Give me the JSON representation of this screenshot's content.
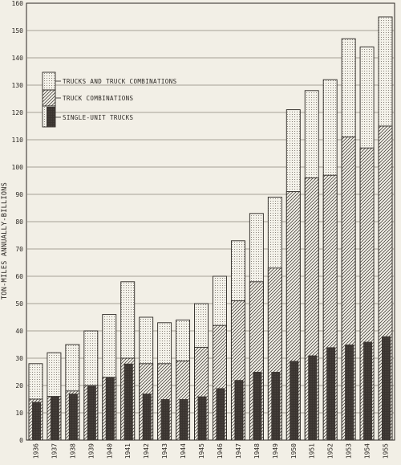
{
  "chart_data": {
    "type": "bar",
    "ylabel": "TON-MILES ANNUALLY-BILLIONS",
    "xlabel": "",
    "ylim": [
      0,
      160
    ],
    "yticks": [
      0,
      10,
      20,
      30,
      40,
      50,
      60,
      70,
      80,
      90,
      100,
      110,
      120,
      130,
      140,
      150,
      160
    ],
    "grid": "horizontal",
    "legend_position": "top-left",
    "categories": [
      "1936",
      "1937",
      "1938",
      "1939",
      "1940",
      "1941",
      "1942",
      "1943",
      "1944",
      "1945",
      "1946",
      "1947",
      "1948",
      "1949",
      "1950",
      "1951",
      "1952",
      "1953",
      "1954",
      "1955"
    ],
    "series": [
      {
        "name": "TRUCKS AND TRUCK COMBINATIONS",
        "pattern": "dotted",
        "values": [
          28,
          32,
          35,
          40,
          46,
          58,
          45,
          43,
          44,
          50,
          60,
          73,
          83,
          89,
          121,
          128,
          132,
          147,
          144,
          155
        ]
      },
      {
        "name": "TRUCK COMBINATIONS",
        "pattern": "hatched",
        "values": [
          15,
          16,
          18,
          20,
          23,
          30,
          28,
          28,
          29,
          34,
          42,
          51,
          58,
          63,
          91,
          96,
          97,
          111,
          107,
          115
        ]
      },
      {
        "name": "SINGLE-UNIT TRUCKS",
        "pattern": "dark",
        "values": [
          14,
          16,
          17,
          20,
          23,
          28,
          17,
          15,
          15,
          16,
          19,
          22,
          25,
          25,
          29,
          31,
          34,
          35,
          36,
          38
        ]
      }
    ]
  },
  "colors": {
    "background": "#f2efe6",
    "ink": "#2a2622",
    "grid": "#8c867c",
    "dark_fill": "#3a3430"
  }
}
